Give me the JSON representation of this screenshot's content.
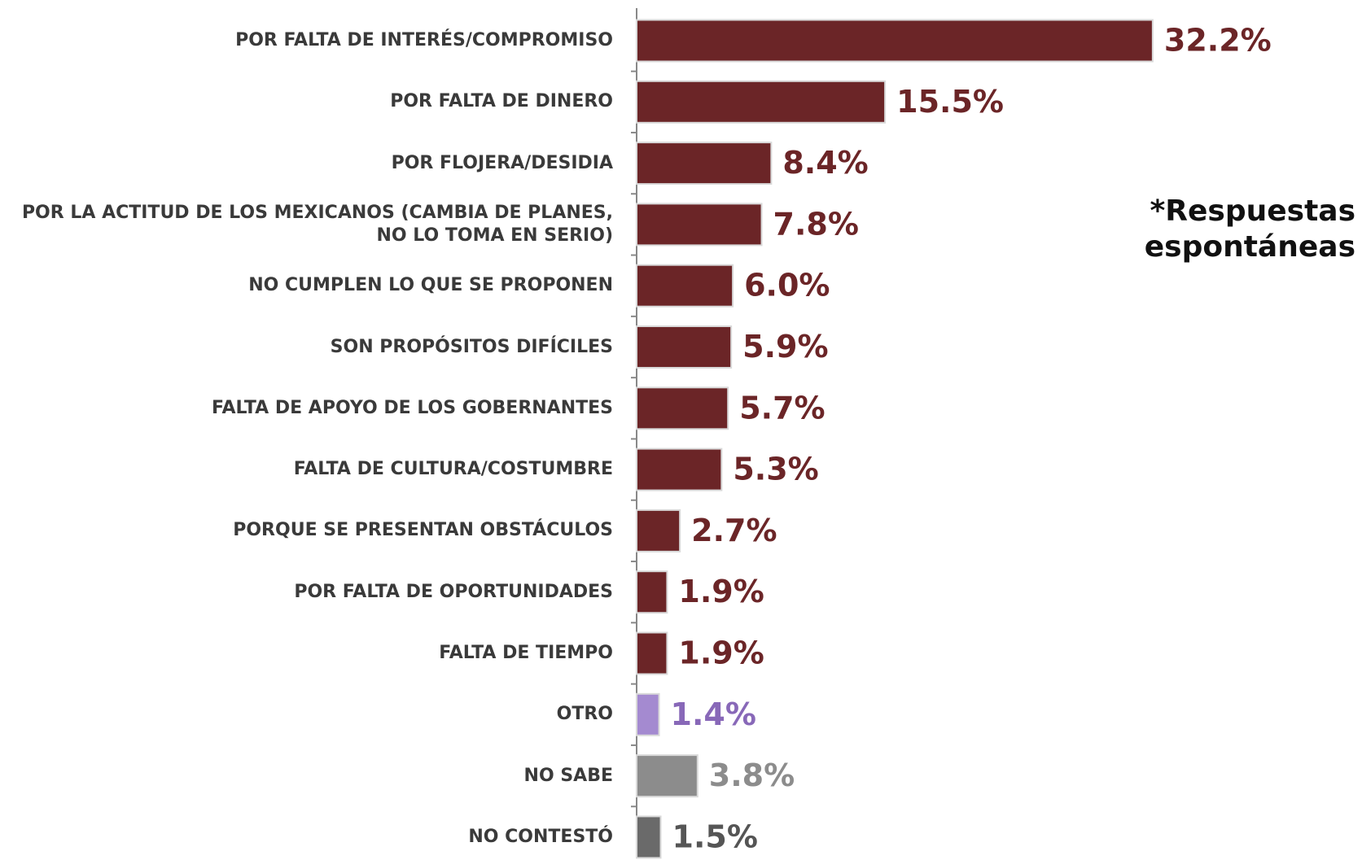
{
  "chart_data": {
    "type": "bar",
    "orientation": "horizontal",
    "annotation": "*Respuestas espontáneas",
    "categories": [
      "POR FALTA DE INTERÉS/COMPROMISO",
      "POR FALTA DE DINERO",
      "POR FLOJERA/DESIDIA",
      "POR LA ACTITUD DE LOS MEXICANOS (CAMBIA DE PLANES, NO LO TOMA EN SERIO)",
      "NO CUMPLEN LO QUE SE PROPONEN",
      "SON PROPÓSITOS DIFÍCILES",
      "FALTA DE APOYO DE LOS GOBERNANTES",
      "FALTA DE CULTURA/COSTUMBRE",
      "PORQUE SE PRESENTAN OBSTÁCULOS",
      "POR FALTA DE OPORTUNIDADES",
      "FALTA DE TIEMPO",
      "OTRO",
      "NO SABE",
      "NO CONTESTÓ"
    ],
    "values": [
      32.2,
      15.5,
      8.4,
      7.8,
      6.0,
      5.9,
      5.7,
      5.3,
      2.7,
      1.9,
      1.9,
      1.4,
      3.8,
      1.5
    ],
    "value_labels": [
      "32.2%",
      "15.5%",
      "8.4%",
      "7.8%",
      "6.0%",
      "5.9%",
      "5.7%",
      "5.3%",
      "2.7%",
      "1.9%",
      "1.9%",
      "1.4%",
      "3.8%",
      "1.5%"
    ],
    "colors": [
      "#6b2527",
      "#6b2527",
      "#6b2527",
      "#6b2527",
      "#6b2527",
      "#6b2527",
      "#6b2527",
      "#6b2527",
      "#6b2527",
      "#6b2527",
      "#6b2527",
      "#a48ad0",
      "#8c8c8c",
      "#6a6a6a"
    ],
    "label_colors": [
      "#6b2527",
      "#6b2527",
      "#6b2527",
      "#6b2527",
      "#6b2527",
      "#6b2527",
      "#6b2527",
      "#6b2527",
      "#6b2527",
      "#6b2527",
      "#6b2527",
      "#8868b8",
      "#8c8c8c",
      "#555555"
    ],
    "xlim": [
      0,
      35
    ]
  }
}
